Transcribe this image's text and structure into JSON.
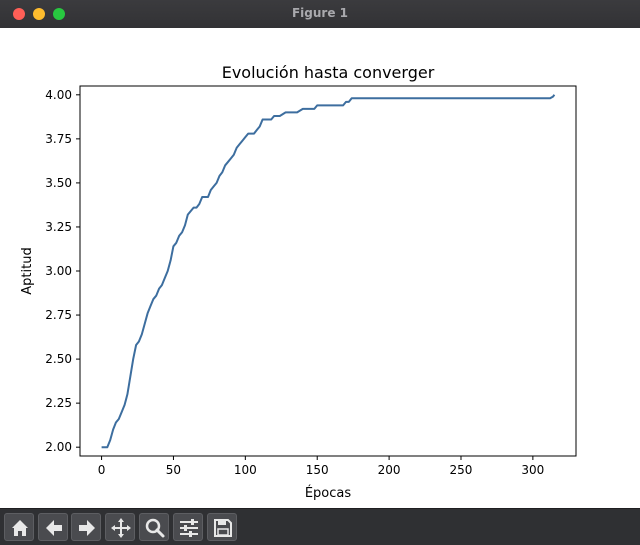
{
  "window": {
    "title": "Figure 1"
  },
  "toolbar": {
    "buttons": [
      {
        "name": "home-icon"
      },
      {
        "name": "back-arrow-icon"
      },
      {
        "name": "forward-arrow-icon"
      },
      {
        "name": "pan-move-icon"
      },
      {
        "name": "zoom-magnifier-icon"
      },
      {
        "name": "configure-subplots-icon"
      },
      {
        "name": "save-floppy-icon"
      }
    ]
  },
  "colors": {
    "line": "#3d6e9f",
    "titlebar": "#333336",
    "toolbar": "#2f3033"
  },
  "chart_data": {
    "type": "line",
    "title": "Evolución hasta converger",
    "xlabel": "Épocas",
    "ylabel": "Aptitud",
    "xlim": [
      -15,
      330
    ],
    "ylim": [
      1.95,
      4.05
    ],
    "xticks": [
      0,
      50,
      100,
      150,
      200,
      250,
      300
    ],
    "xtick_labels": [
      "0",
      "50",
      "100",
      "150",
      "200",
      "250",
      "300"
    ],
    "yticks": [
      2.0,
      2.25,
      2.5,
      2.75,
      3.0,
      3.25,
      3.5,
      3.75,
      4.0
    ],
    "ytick_labels": [
      "2.00",
      "2.25",
      "2.50",
      "2.75",
      "3.00",
      "3.25",
      "3.50",
      "3.75",
      "4.00"
    ],
    "grid": false,
    "series": [
      {
        "color": "#3d6e9f",
        "x": [
          0,
          4,
          6,
          8,
          10,
          12,
          14,
          16,
          18,
          20,
          22,
          24,
          26,
          28,
          30,
          32,
          34,
          36,
          38,
          40,
          42,
          44,
          46,
          48,
          50,
          52,
          54,
          56,
          58,
          60,
          62,
          64,
          66,
          68,
          70,
          72,
          74,
          76,
          78,
          80,
          82,
          84,
          86,
          88,
          90,
          92,
          94,
          96,
          98,
          100,
          102,
          104,
          106,
          108,
          110,
          112,
          114,
          116,
          118,
          120,
          122,
          124,
          128,
          132,
          136,
          140,
          148,
          150,
          156,
          160,
          168,
          170,
          172,
          174,
          176,
          180,
          200,
          250,
          300,
          312,
          314,
          315
        ],
        "y": [
          2.0,
          2.0,
          2.04,
          2.1,
          2.14,
          2.16,
          2.2,
          2.24,
          2.3,
          2.4,
          2.5,
          2.58,
          2.6,
          2.64,
          2.7,
          2.76,
          2.8,
          2.84,
          2.86,
          2.9,
          2.92,
          2.96,
          3.0,
          3.06,
          3.14,
          3.16,
          3.2,
          3.22,
          3.26,
          3.32,
          3.34,
          3.36,
          3.36,
          3.38,
          3.42,
          3.42,
          3.42,
          3.46,
          3.48,
          3.5,
          3.54,
          3.56,
          3.6,
          3.62,
          3.64,
          3.66,
          3.7,
          3.72,
          3.74,
          3.76,
          3.78,
          3.78,
          3.78,
          3.8,
          3.82,
          3.86,
          3.86,
          3.86,
          3.86,
          3.88,
          3.88,
          3.88,
          3.9,
          3.9,
          3.9,
          3.92,
          3.92,
          3.94,
          3.94,
          3.94,
          3.94,
          3.96,
          3.96,
          3.98,
          3.98,
          3.98,
          3.98,
          3.98,
          3.98,
          3.98,
          3.99,
          4.0
        ]
      }
    ]
  }
}
